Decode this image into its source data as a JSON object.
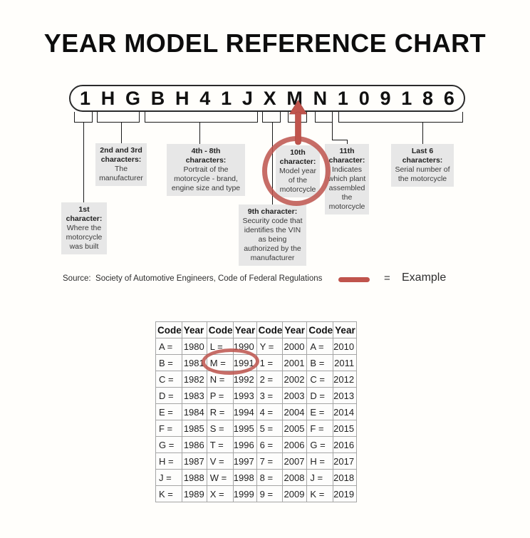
{
  "page": {
    "title": "YEAR MODEL REFERENCE CHART"
  },
  "vin": {
    "value": "1HGBH41JXMN109186",
    "characters": [
      "1",
      "H",
      "G",
      "B",
      "H",
      "4",
      "1",
      "J",
      "X",
      "M",
      "N",
      "1",
      "0",
      "9",
      "1",
      "8",
      "6"
    ]
  },
  "callouts": {
    "first": {
      "heading": "1st character:",
      "body": "Where the motorcycle was built"
    },
    "second_third": {
      "heading": "2nd and 3rd characters:",
      "body": "The manufacturer"
    },
    "fourth_eighth": {
      "heading": "4th - 8th characters:",
      "body": "Portrait of the motorcycle - brand, engine size and type"
    },
    "ninth": {
      "heading": "9th character:",
      "body": "Security code that identifies the VIN as being authorized by the manufacturer"
    },
    "tenth": {
      "heading": "10th character:",
      "body": "Model year of the motorcycle"
    },
    "eleventh": {
      "heading": "11th character:",
      "body": "Indicates which plant assembled the motorcycle"
    },
    "last_six": {
      "heading": "Last 6 characters:",
      "body": "Serial number of the motorcycle"
    }
  },
  "source": {
    "text": "Source:  Society of Automotive Engineers, Code of Federal Regulations"
  },
  "legend": {
    "equals": "=",
    "label": "Example"
  },
  "icons": {
    "example_arrow": "red-up-arrow",
    "example_circle_vin": "red-ellipse-around-10th-character-box",
    "example_circle_table": "red-ellipse-around-M-1991",
    "example_line": "red-horizontal-line"
  },
  "colors": {
    "accent_red": "#bd544c",
    "callout_bg": "#e7e7e7",
    "connector_line": "#1a1a1a",
    "table_border": "#a5a5a5"
  },
  "table": {
    "headers": [
      "Code",
      "Year",
      "Code",
      "Year",
      "Code",
      "Year",
      "Code",
      "Year"
    ],
    "rows": [
      [
        "A =",
        "1980",
        "L =",
        "1990",
        "Y =",
        "2000",
        "A =",
        "2010"
      ],
      [
        "B =",
        "1981",
        "M =",
        "1991",
        "1 =",
        "2001",
        "B =",
        "2011"
      ],
      [
        "C =",
        "1982",
        "N =",
        "1992",
        "2 =",
        "2002",
        "C =",
        "2012"
      ],
      [
        "D =",
        "1983",
        "P =",
        "1993",
        "3 =",
        "2003",
        "D =",
        "2013"
      ],
      [
        "E =",
        "1984",
        "R =",
        "1994",
        "4 =",
        "2004",
        "E =",
        "2014"
      ],
      [
        "F =",
        "1985",
        "S =",
        "1995",
        "5 =",
        "2005",
        "F =",
        "2015"
      ],
      [
        "G =",
        "1986",
        "T =",
        "1996",
        "6 =",
        "2006",
        "G =",
        "2016"
      ],
      [
        "H =",
        "1987",
        "V =",
        "1997",
        "7 =",
        "2007",
        "H =",
        "2017"
      ],
      [
        "J =",
        "1988",
        "W =",
        "1998",
        "8 =",
        "2008",
        "J =",
        "2018"
      ],
      [
        "K =",
        "1989",
        "X =",
        "1999",
        "9 =",
        "2009",
        "K =",
        "2019"
      ]
    ]
  }
}
